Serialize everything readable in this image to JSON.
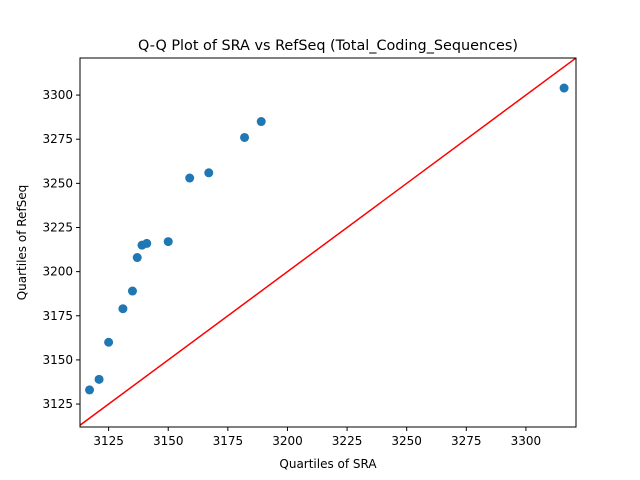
{
  "chart_data": {
    "type": "scatter",
    "title": "Q-Q Plot of SRA vs RefSeq (Total_Coding_Sequences)",
    "xlabel": "Quartiles of SRA",
    "ylabel": "Quartiles of RefSeq",
    "xlim": [
      3113,
      3321
    ],
    "ylim": [
      3112,
      3321
    ],
    "xticks": [
      3125,
      3150,
      3175,
      3200,
      3225,
      3250,
      3275,
      3300
    ],
    "yticks": [
      3125,
      3150,
      3175,
      3200,
      3225,
      3250,
      3275,
      3300
    ],
    "grid": false,
    "point_color": "#1f77b4",
    "reference_line_color": "#ff0000",
    "reference_line": {
      "x": [
        3113,
        3321
      ],
      "y": [
        3113,
        3321
      ]
    },
    "points": [
      {
        "x": 3117,
        "y": 3133
      },
      {
        "x": 3121,
        "y": 3139
      },
      {
        "x": 3125,
        "y": 3160
      },
      {
        "x": 3131,
        "y": 3179
      },
      {
        "x": 3135,
        "y": 3189
      },
      {
        "x": 3137,
        "y": 3208
      },
      {
        "x": 3139,
        "y": 3215
      },
      {
        "x": 3141,
        "y": 3216
      },
      {
        "x": 3150,
        "y": 3217
      },
      {
        "x": 3159,
        "y": 3253
      },
      {
        "x": 3167,
        "y": 3256
      },
      {
        "x": 3182,
        "y": 3276
      },
      {
        "x": 3189,
        "y": 3285
      },
      {
        "x": 3316,
        "y": 3304
      }
    ]
  }
}
